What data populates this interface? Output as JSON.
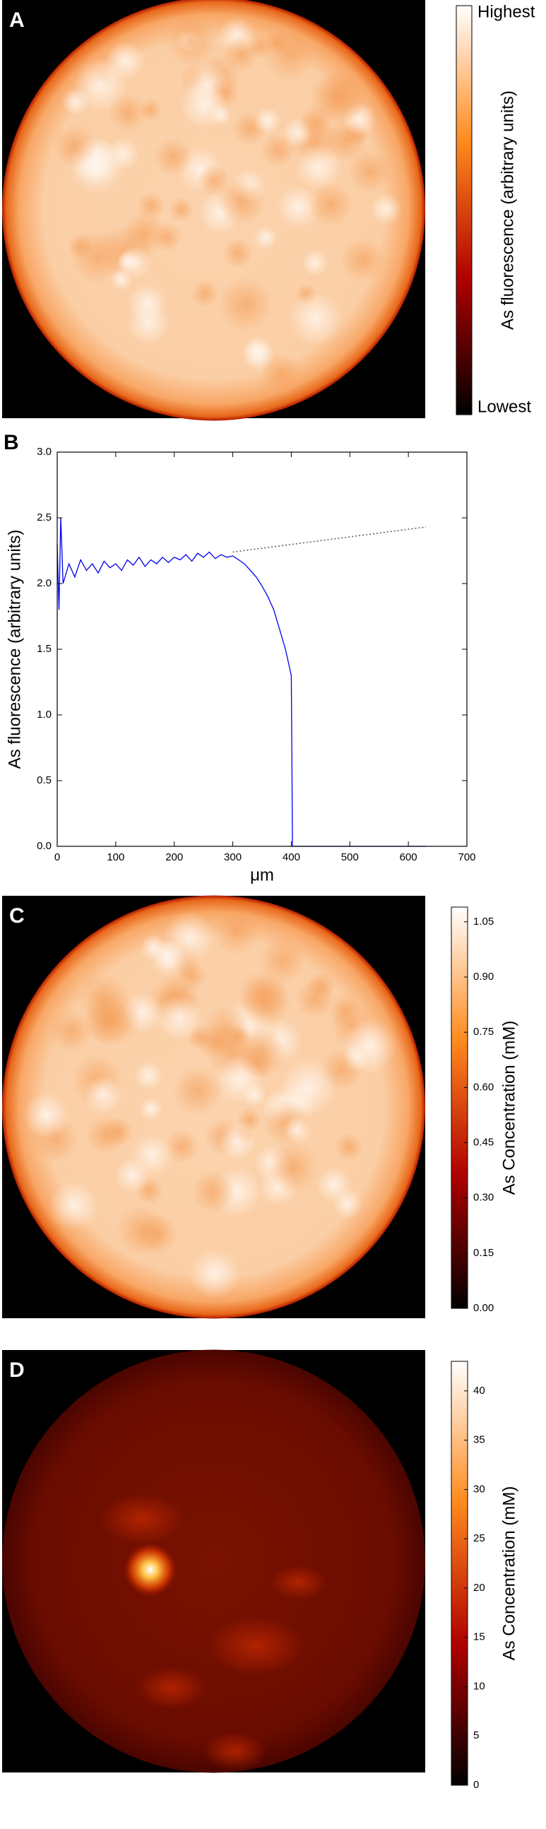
{
  "chart_data": [
    {
      "type": "heatmap",
      "panel": "A",
      "colormap": [
        "#000000",
        "#b00000",
        "#ff8a1c",
        "#ffffff"
      ],
      "fill": "light",
      "colorbar_label": "As fluorescence (arbitrary units)",
      "colorbar_top_label": "Highest",
      "colorbar_bottom_label": "Lowest"
    },
    {
      "type": "line",
      "panel": "B",
      "xlabel": "μm",
      "ylabel": "As fluorescence (arbitrary units)",
      "xlim": [
        0,
        700
      ],
      "xticks": [
        0,
        100,
        200,
        300,
        400,
        500,
        600,
        700
      ],
      "ylim": [
        0,
        3
      ],
      "yticks": [
        {
          "value": 0,
          "label": "0.0"
        },
        {
          "value": 0.5,
          "label": "0.5"
        },
        {
          "value": 1,
          "label": "1.0"
        },
        {
          "value": 1.5,
          "label": "1.5"
        },
        {
          "value": 2,
          "label": "2.0"
        },
        {
          "value": 2.5,
          "label": "2.5"
        },
        {
          "value": 3,
          "label": "3.0"
        }
      ],
      "series": [
        {
          "color": "#0000ee",
          "style": "solid",
          "x": [
            0,
            3,
            6,
            10,
            20,
            30,
            40,
            50,
            60,
            70,
            80,
            90,
            100,
            110,
            120,
            130,
            140,
            150,
            160,
            170,
            180,
            190,
            200,
            210,
            220,
            230,
            240,
            250,
            260,
            270,
            280,
            290,
            300,
            310,
            320,
            330,
            340,
            350,
            360,
            370,
            380,
            390,
            395,
            400,
            402,
            450,
            500,
            550,
            600,
            630
          ],
          "values": [
            2.3,
            1.8,
            2.5,
            2.0,
            2.15,
            2.05,
            2.18,
            2.1,
            2.15,
            2.08,
            2.17,
            2.12,
            2.15,
            2.1,
            2.18,
            2.14,
            2.2,
            2.13,
            2.18,
            2.15,
            2.2,
            2.16,
            2.2,
            2.18,
            2.22,
            2.17,
            2.23,
            2.2,
            2.24,
            2.19,
            2.22,
            2.2,
            2.21,
            2.18,
            2.15,
            2.1,
            2.05,
            1.98,
            1.9,
            1.8,
            1.65,
            1.5,
            1.4,
            1.3,
            0,
            0,
            0,
            0,
            0,
            0
          ]
        },
        {
          "color": "#555555",
          "style": "dotted",
          "x": [
            300,
            630
          ],
          "values": [
            2.24,
            2.43
          ]
        }
      ]
    },
    {
      "type": "heatmap",
      "panel": "C",
      "colormap": [
        "#000000",
        "#b00000",
        "#ff8a1c",
        "#ffffff"
      ],
      "fill": "light",
      "colorbar_label": "As Concentration (mM)",
      "ylim": [
        0,
        1.09
      ],
      "yticks": [
        {
          "value": 0,
          "label": "0.00"
        },
        {
          "value": 0.15,
          "label": "0.15"
        },
        {
          "value": 0.3,
          "label": "0.30"
        },
        {
          "value": 0.45,
          "label": "0.45"
        },
        {
          "value": 0.6,
          "label": "0.60"
        },
        {
          "value": 0.75,
          "label": "0.75"
        },
        {
          "value": 0.9,
          "label": "0.90"
        },
        {
          "value": 1.05,
          "label": "1.05"
        }
      ]
    },
    {
      "type": "heatmap",
      "panel": "D",
      "colormap": [
        "#000000",
        "#b00000",
        "#ff8a1c",
        "#ffffff"
      ],
      "fill": "dark",
      "colorbar_label": "As Concentration (mM)",
      "ylim": [
        0,
        43
      ],
      "yticks": [
        0,
        5,
        10,
        15,
        20,
        25,
        30,
        35,
        40
      ]
    }
  ]
}
